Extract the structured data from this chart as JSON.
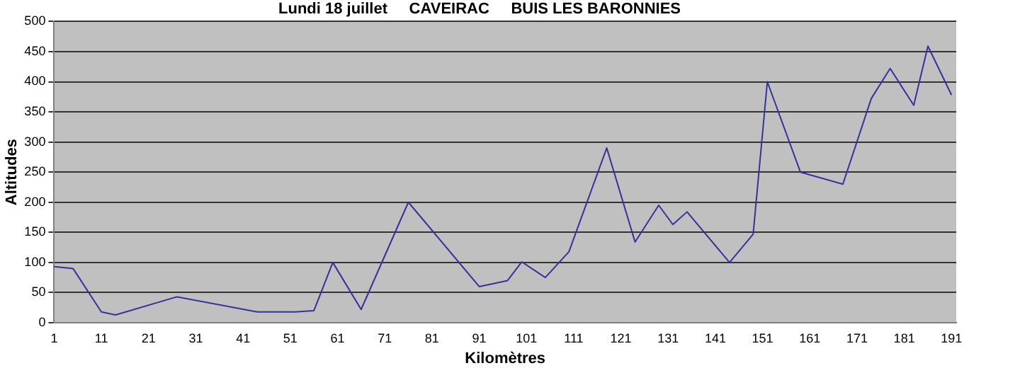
{
  "chart_data": {
    "type": "line",
    "title": "Lundi 18 juillet     CAVEIRAC     BUIS LES BARONNIES",
    "xlabel": "Kilomètres",
    "ylabel": "Altitudes",
    "x": [
      1,
      5,
      11,
      14,
      27,
      44,
      52,
      56,
      60,
      66,
      76,
      91,
      97,
      100,
      105,
      110,
      118,
      124,
      129,
      132,
      135,
      144,
      149,
      152,
      159,
      168,
      174,
      178,
      183,
      186,
      191
    ],
    "series": [
      {
        "color": "#333399",
        "values": [
          93,
          90,
          18,
          13,
          43,
          18,
          18,
          20,
          100,
          22,
          200,
          60,
          70,
          101,
          75,
          118,
          290,
          134,
          195,
          163,
          184,
          100,
          147,
          400,
          250,
          230,
          372,
          422,
          361,
          459,
          378
        ]
      }
    ],
    "xlim": [
      1,
      192
    ],
    "xticks": [
      1,
      11,
      21,
      31,
      41,
      51,
      61,
      71,
      81,
      91,
      101,
      111,
      121,
      131,
      141,
      151,
      161,
      171,
      181,
      191
    ],
    "ylim": [
      0,
      500
    ],
    "yticks": [
      0,
      50,
      100,
      150,
      200,
      250,
      300,
      350,
      400,
      450,
      500
    ],
    "grid": "y",
    "legend": false,
    "marker": "none",
    "line_style": "solid"
  }
}
